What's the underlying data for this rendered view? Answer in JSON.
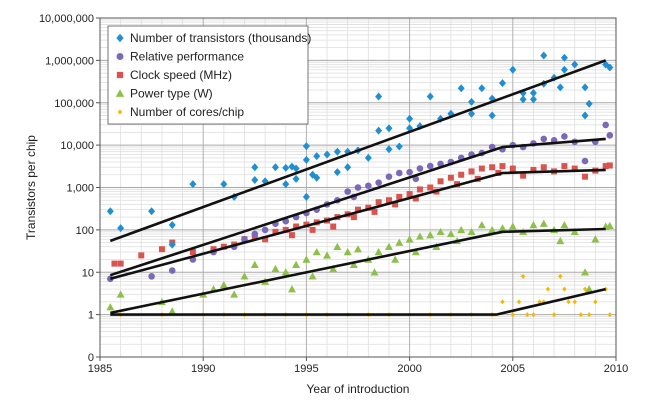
{
  "chart_data": {
    "type": "scatter",
    "xlabel": "Year of introduction",
    "ylabel": "Transistors per chip",
    "xlim": [
      1985,
      2010
    ],
    "ylim_log": [
      1,
      10000000
    ],
    "x_ticks": [
      "1985",
      "1990",
      "1995",
      "2000",
      "2005",
      "2010"
    ],
    "y_ticks": [
      "0",
      "1",
      "10",
      "100",
      "1,000",
      "10,000",
      "100,000",
      "1,000,000",
      "10,000,000"
    ],
    "grid": true,
    "legend_position": "top-left",
    "series": [
      {
        "name": "Number of transistors (thousands)",
        "color": "#1f8fd1",
        "marker": "diamond",
        "points": [
          [
            1985.5,
            275
          ],
          [
            1986,
            110
          ],
          [
            1987.5,
            275
          ],
          [
            1988.5,
            130
          ],
          [
            1988.5,
            45
          ],
          [
            1989.5,
            1200
          ],
          [
            1991,
            1200
          ],
          [
            1991.5,
            600
          ],
          [
            1992.5,
            3000
          ],
          [
            1992.5,
            1500
          ],
          [
            1993,
            1400
          ],
          [
            1993.5,
            3000
          ],
          [
            1994,
            1200
          ],
          [
            1994,
            2900
          ],
          [
            1994.3,
            3100
          ],
          [
            1994.5,
            2800
          ],
          [
            1994.5,
            1600
          ],
          [
            1995,
            9500
          ],
          [
            1995,
            4500
          ],
          [
            1995,
            600
          ],
          [
            1995.3,
            2000
          ],
          [
            1995.5,
            5500
          ],
          [
            1995.5,
            1700
          ],
          [
            1996,
            6000
          ],
          [
            1996.5,
            2300
          ],
          [
            1996.5,
            7000
          ],
          [
            1997,
            7000
          ],
          [
            1997,
            3000
          ],
          [
            1997.5,
            7500
          ],
          [
            1998,
            5000
          ],
          [
            1998.5,
            22000
          ],
          [
            1998.5,
            140000
          ],
          [
            1999,
            8000
          ],
          [
            1999,
            25000
          ],
          [
            1999.5,
            9300
          ],
          [
            2000,
            25000
          ],
          [
            2000,
            42000
          ],
          [
            2000.5,
            28000
          ],
          [
            2001,
            140000
          ],
          [
            2001.5,
            42000
          ],
          [
            2002,
            55000
          ],
          [
            2002.5,
            220000
          ],
          [
            2003,
            105000
          ],
          [
            2003,
            55000
          ],
          [
            2003.5,
            220000
          ],
          [
            2004,
            125000
          ],
          [
            2004,
            50000
          ],
          [
            2004.5,
            290000
          ],
          [
            2005,
            600000
          ],
          [
            2005.5,
            170000
          ],
          [
            2005.5,
            120000
          ],
          [
            2006,
            120000
          ],
          [
            2006,
            170000
          ],
          [
            2006.5,
            1300000
          ],
          [
            2006.5,
            280000
          ],
          [
            2007,
            390000
          ],
          [
            2007.3,
            230000
          ],
          [
            2007.5,
            1150000
          ],
          [
            2007.5,
            600000
          ],
          [
            2008,
            800000
          ],
          [
            2008.5,
            230000
          ],
          [
            2008.5,
            50000
          ],
          [
            2008.7,
            95000
          ],
          [
            2009.5,
            800000
          ],
          [
            2009.7,
            680000
          ]
        ]
      },
      {
        "name": "Relative performance",
        "color": "#7b68b8",
        "marker": "circle",
        "points": [
          [
            1985.5,
            7
          ],
          [
            1987.5,
            8
          ],
          [
            1988.5,
            11
          ],
          [
            1989.5,
            20
          ],
          [
            1990.5,
            30
          ],
          [
            1991.5,
            40
          ],
          [
            1992,
            60
          ],
          [
            1992.5,
            80
          ],
          [
            1993,
            100
          ],
          [
            1993.5,
            140
          ],
          [
            1994,
            160
          ],
          [
            1994.5,
            200
          ],
          [
            1995,
            250
          ],
          [
            1995.5,
            300
          ],
          [
            1996,
            400
          ],
          [
            1996.5,
            500
          ],
          [
            1997,
            800
          ],
          [
            1997.3,
            600
          ],
          [
            1997.5,
            1000
          ],
          [
            1998,
            1100
          ],
          [
            1998.5,
            1300
          ],
          [
            1999,
            1800
          ],
          [
            1999.5,
            2200
          ],
          [
            2000,
            2300
          ],
          [
            2000.3,
            1600
          ],
          [
            2000.5,
            2800
          ],
          [
            2001,
            3200
          ],
          [
            2001.5,
            3600
          ],
          [
            2002,
            4000
          ],
          [
            2002.5,
            5000
          ],
          [
            2003,
            6000
          ],
          [
            2003.5,
            6500
          ],
          [
            2004,
            9000
          ],
          [
            2004.5,
            8000
          ],
          [
            2005,
            10000
          ],
          [
            2005.5,
            9000
          ],
          [
            2006,
            11000
          ],
          [
            2006.5,
            14000
          ],
          [
            2007,
            13000
          ],
          [
            2007.5,
            16000
          ],
          [
            2008,
            12000
          ],
          [
            2008.5,
            4200
          ],
          [
            2009,
            12000
          ],
          [
            2009.5,
            30000
          ],
          [
            2009.7,
            17000
          ]
        ]
      },
      {
        "name": "Clock speed (MHz)",
        "color": "#d9534f",
        "marker": "square",
        "points": [
          [
            1985.7,
            16
          ],
          [
            1986,
            16
          ],
          [
            1987,
            25
          ],
          [
            1988,
            35
          ],
          [
            1988.5,
            50
          ],
          [
            1989.5,
            30
          ],
          [
            1990.5,
            35
          ],
          [
            1991,
            40
          ],
          [
            1991.5,
            45
          ],
          [
            1992,
            60
          ],
          [
            1992.5,
            66
          ],
          [
            1993,
            60
          ],
          [
            1993.5,
            90
          ],
          [
            1994,
            100
          ],
          [
            1994.3,
            75
          ],
          [
            1994.5,
            120
          ],
          [
            1995,
            133
          ],
          [
            1995.3,
            100
          ],
          [
            1995.5,
            150
          ],
          [
            1996,
            166
          ],
          [
            1996.3,
            120
          ],
          [
            1996.5,
            200
          ],
          [
            1997,
            233
          ],
          [
            1997.3,
            200
          ],
          [
            1997.5,
            300
          ],
          [
            1998,
            333
          ],
          [
            1998.3,
            266
          ],
          [
            1998.5,
            450
          ],
          [
            1999,
            500
          ],
          [
            1999.3,
            400
          ],
          [
            1999.5,
            600
          ],
          [
            2000,
            700
          ],
          [
            2000.3,
            550
          ],
          [
            2000.5,
            900
          ],
          [
            2001,
            1000
          ],
          [
            2001.3,
            800
          ],
          [
            2001.5,
            1400
          ],
          [
            2002,
            1700
          ],
          [
            2002.3,
            1200
          ],
          [
            2002.5,
            2000
          ],
          [
            2003,
            2400
          ],
          [
            2003.3,
            1600
          ],
          [
            2003.5,
            2800
          ],
          [
            2004,
            3000
          ],
          [
            2004.3,
            2200
          ],
          [
            2004.5,
            3200
          ],
          [
            2005,
            2800
          ],
          [
            2005.5,
            1900
          ],
          [
            2006,
            2600
          ],
          [
            2006.5,
            3000
          ],
          [
            2007,
            2400
          ],
          [
            2007.5,
            3200
          ],
          [
            2008,
            2800
          ],
          [
            2008.5,
            1800
          ],
          [
            2009,
            2500
          ],
          [
            2009.5,
            3200
          ],
          [
            2009.7,
            3300
          ]
        ]
      },
      {
        "name": "Power type (W)",
        "color": "#8dc04a",
        "marker": "triangle",
        "points": [
          [
            1985.5,
            1.5
          ],
          [
            1986,
            3
          ],
          [
            1988,
            2
          ],
          [
            1988.5,
            1.2
          ],
          [
            1990,
            3
          ],
          [
            1990.5,
            4
          ],
          [
            1991,
            5
          ],
          [
            1991.5,
            3
          ],
          [
            1992,
            8
          ],
          [
            1992.5,
            15
          ],
          [
            1993,
            6
          ],
          [
            1993.5,
            12
          ],
          [
            1994,
            10
          ],
          [
            1994.3,
            4
          ],
          [
            1994.5,
            15
          ],
          [
            1995,
            20
          ],
          [
            1995.3,
            8
          ],
          [
            1995.5,
            30
          ],
          [
            1996,
            25
          ],
          [
            1996.3,
            12
          ],
          [
            1996.5,
            40
          ],
          [
            1997,
            30
          ],
          [
            1997.3,
            15
          ],
          [
            1997.5,
            35
          ],
          [
            1998,
            20
          ],
          [
            1998.3,
            10
          ],
          [
            1998.5,
            30
          ],
          [
            1999,
            40
          ],
          [
            1999.3,
            20
          ],
          [
            1999.5,
            50
          ],
          [
            2000,
            60
          ],
          [
            2000.3,
            30
          ],
          [
            2000.5,
            70
          ],
          [
            2001,
            75
          ],
          [
            2001.3,
            40
          ],
          [
            2001.5,
            90
          ],
          [
            2002,
            80
          ],
          [
            2002.3,
            55
          ],
          [
            2002.5,
            100
          ],
          [
            2003,
            90
          ],
          [
            2003.5,
            130
          ],
          [
            2004,
            100
          ],
          [
            2004.5,
            110
          ],
          [
            2005,
            120
          ],
          [
            2005.5,
            90
          ],
          [
            2006,
            130
          ],
          [
            2006.5,
            140
          ],
          [
            2007,
            100
          ],
          [
            2007.3,
            55
          ],
          [
            2007.5,
            130
          ],
          [
            2008,
            90
          ],
          [
            2008.5,
            10
          ],
          [
            2008.7,
            4
          ],
          [
            2009,
            60
          ],
          [
            2009.5,
            120
          ],
          [
            2009.7,
            125
          ]
        ]
      },
      {
        "name": "Number of cores/chip",
        "color": "#f5b800",
        "marker": "circle-small",
        "points": [
          [
            1986,
            1
          ],
          [
            1988,
            1
          ],
          [
            1990,
            1
          ],
          [
            1991,
            1
          ],
          [
            1992,
            1
          ],
          [
            1993,
            1
          ],
          [
            1994,
            1
          ],
          [
            1995,
            1
          ],
          [
            1996,
            1
          ],
          [
            1997,
            1
          ],
          [
            1998,
            1
          ],
          [
            1999,
            1
          ],
          [
            2000,
            1
          ],
          [
            2001,
            1
          ],
          [
            2002,
            1
          ],
          [
            2003,
            1
          ],
          [
            2004,
            1
          ],
          [
            2004.5,
            2
          ],
          [
            2005,
            1
          ],
          [
            2005.3,
            2
          ],
          [
            2005.5,
            8
          ],
          [
            2005.7,
            1
          ],
          [
            2006,
            1
          ],
          [
            2006.3,
            2
          ],
          [
            2006.5,
            2
          ],
          [
            2006.7,
            4
          ],
          [
            2007,
            1
          ],
          [
            2007.3,
            8
          ],
          [
            2007.5,
            4
          ],
          [
            2007.7,
            2
          ],
          [
            2008,
            2
          ],
          [
            2008.3,
            1
          ],
          [
            2008.5,
            4
          ],
          [
            2008.7,
            1
          ],
          [
            2009,
            2
          ],
          [
            2009.5,
            4
          ],
          [
            2009.7,
            1
          ]
        ]
      }
    ],
    "trend_lines": [
      {
        "series": "Number of transistors (thousands)",
        "points": [
          [
            1985.5,
            55
          ],
          [
            2009.5,
            1000000
          ]
        ]
      },
      {
        "series": "Relative performance",
        "points": [
          [
            1985.5,
            8.5
          ],
          [
            2004.5,
            9000
          ],
          [
            2009.5,
            14000
          ]
        ]
      },
      {
        "series": "Clock speed (MHz)",
        "points": [
          [
            1985.5,
            7
          ],
          [
            2004.5,
            2200
          ],
          [
            2009.5,
            2600
          ]
        ]
      },
      {
        "series": "Power type (W)",
        "points": [
          [
            1985.5,
            1.1
          ],
          [
            2004.5,
            90
          ],
          [
            2009.5,
            105
          ]
        ]
      },
      {
        "series": "Number of cores/chip",
        "points": [
          [
            1985.5,
            1
          ],
          [
            2004.2,
            1
          ],
          [
            2009.5,
            4
          ]
        ]
      }
    ]
  }
}
